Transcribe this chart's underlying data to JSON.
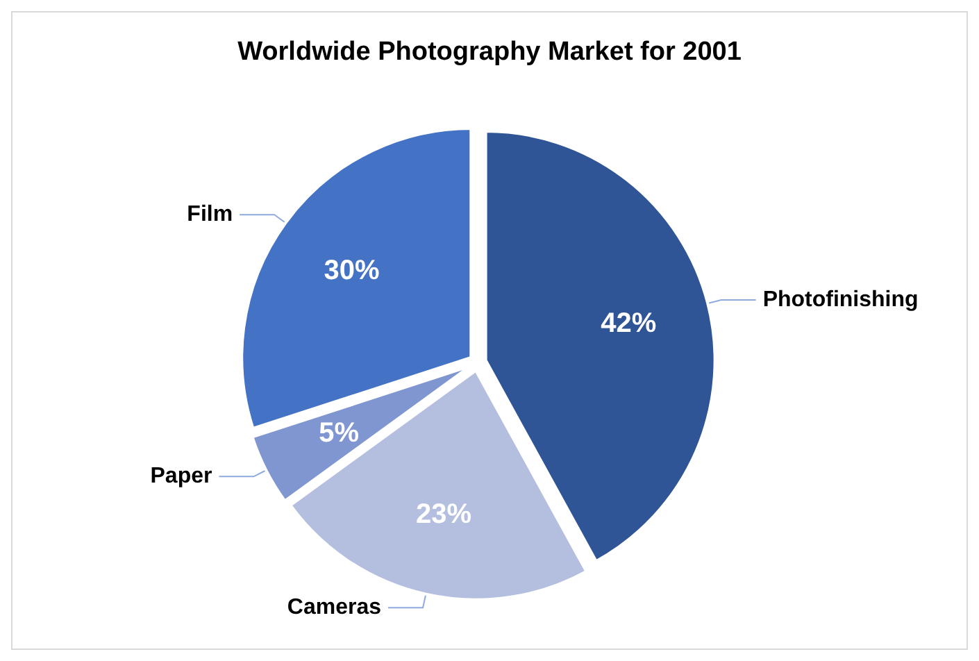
{
  "chart_data": {
    "type": "pie",
    "title": "Worldwide Photography Market for 2001",
    "categories": [
      "Photofinishing",
      "Cameras",
      "Paper",
      "Film"
    ],
    "values": [
      42,
      23,
      5,
      30
    ],
    "value_labels": [
      "42%",
      "23%",
      "5%",
      "30%"
    ],
    "colors": [
      "#2f5597",
      "#b4bfe0",
      "#7f96d1",
      "#4472c4"
    ],
    "legend": false
  }
}
